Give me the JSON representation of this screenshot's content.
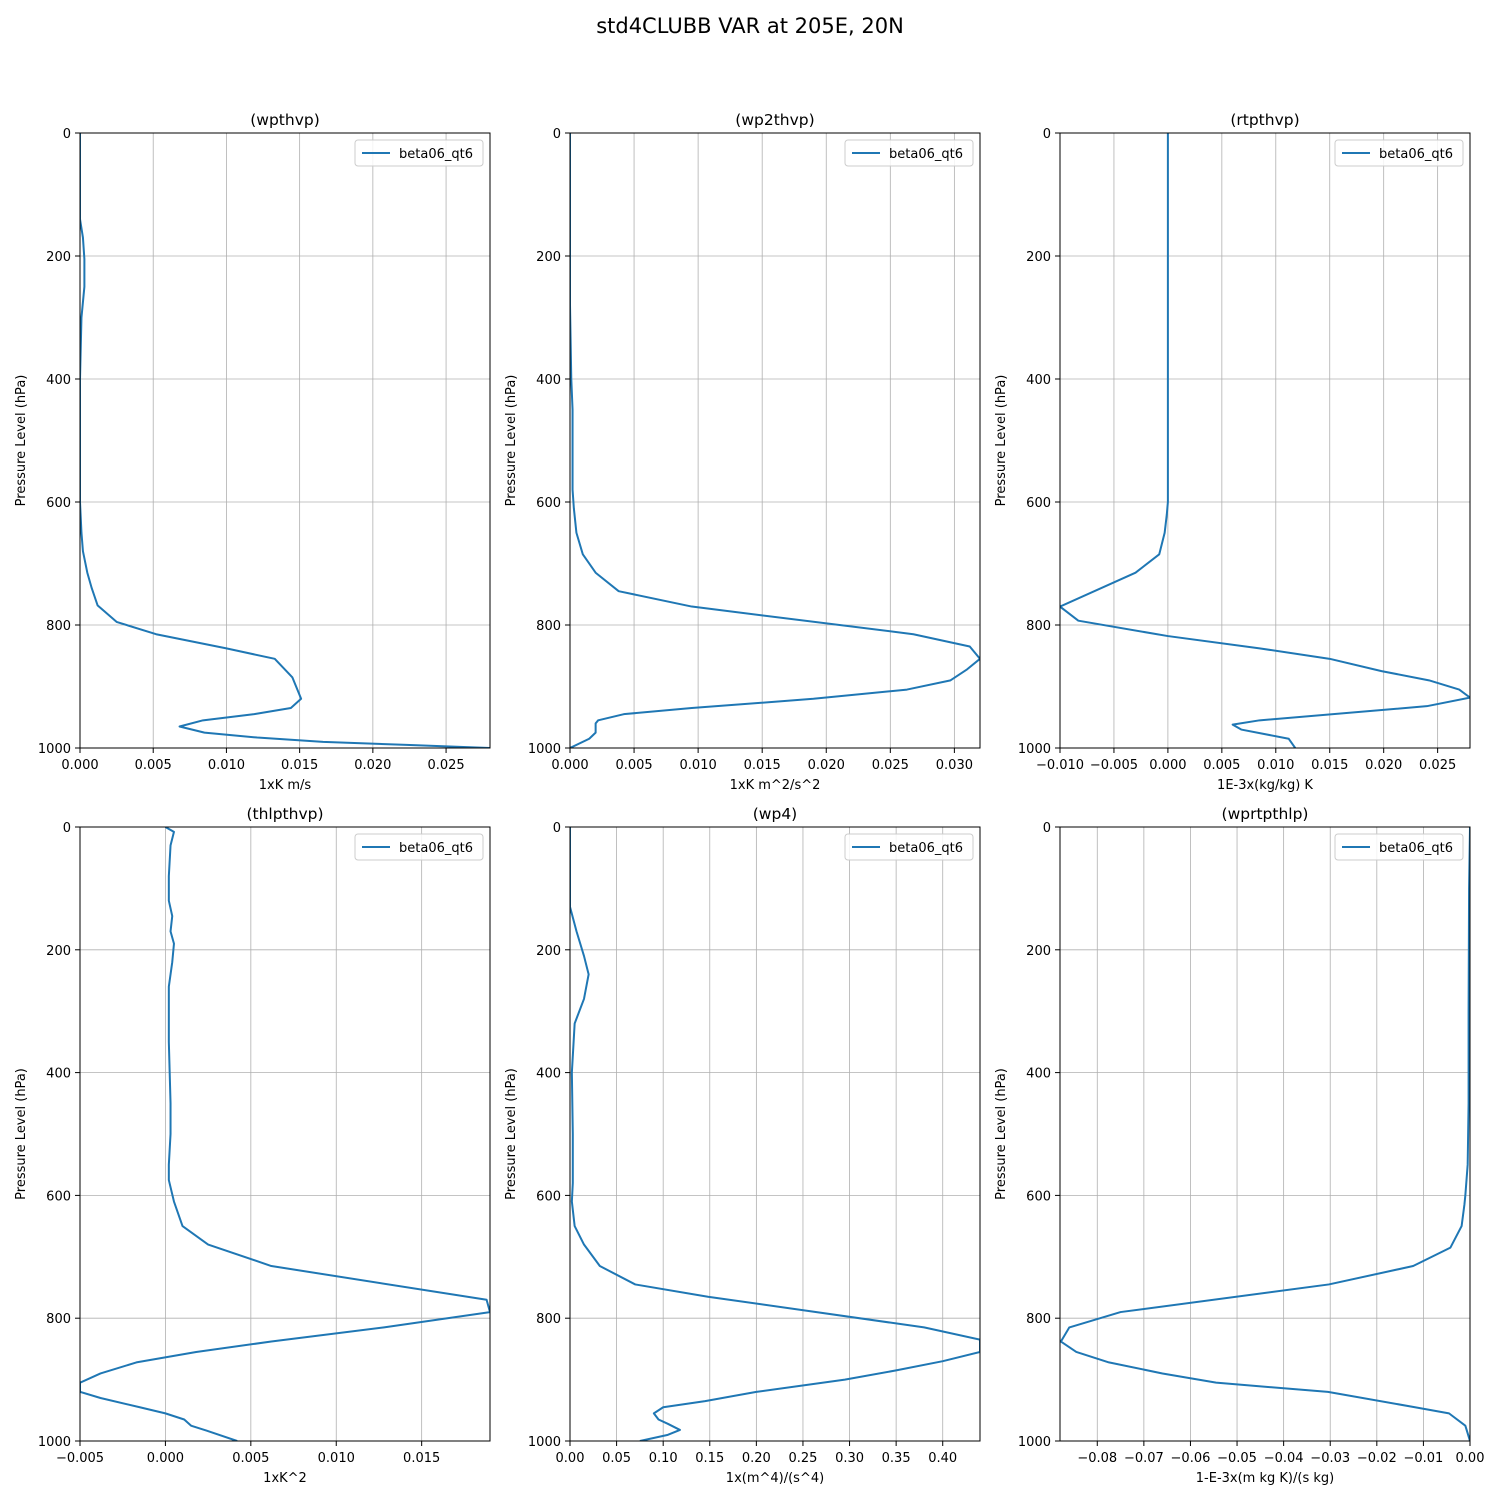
{
  "figure": {
    "suptitle": "std4CLUBB VAR at 205E, 20N"
  },
  "colors": {
    "line": "#1f77b4",
    "grid": "#b0b0b0",
    "legend_border": "#cccccc"
  },
  "chart_data": [
    {
      "type": "line",
      "title": "(wpthvp)",
      "xlabel": "1xK m/s",
      "ylabel": "Pressure Level (hPa)",
      "xlim": [
        0,
        0.028
      ],
      "ylim": [
        1000,
        0
      ],
      "xticks": [
        0,
        0.005,
        0.01,
        0.015,
        0.02,
        0.025
      ],
      "xtick_labels": [
        "0.000",
        "0.005",
        "0.010",
        "0.015",
        "0.020",
        "0.025"
      ],
      "yticks": [
        0,
        200,
        400,
        600,
        800,
        1000
      ],
      "ytick_labels": [
        "0",
        "200",
        "400",
        "600",
        "800",
        "1000"
      ],
      "grid": true,
      "legend": "upper right",
      "series": [
        {
          "name": "beta06_qt6",
          "x": [
            0,
            0,
            0,
            0.0002,
            0.0003,
            0.0003,
            0.0001,
            0,
            0,
            0,
            0.0001,
            0.0002,
            0.0005,
            0.0008,
            0.0012,
            0.0025,
            0.0052,
            0.01,
            0.0133,
            0.0145,
            0.0151,
            0.0144,
            0.0119,
            0.0084,
            0.0068,
            0.0085,
            0.0121,
            0.0166,
            0.0223,
            0.028
          ],
          "y": [
            0,
            60,
            140,
            170,
            205,
            250,
            300,
            400,
            500,
            600,
            650,
            680,
            715,
            740,
            768,
            795,
            815,
            838,
            855,
            885,
            920,
            935,
            945,
            955,
            965,
            975,
            983,
            990,
            995,
            1000
          ]
        }
      ]
    },
    {
      "type": "line",
      "title": "(wp2thvp)",
      "xlabel": "1xK m^2/s^2",
      "ylabel": "Pressure Level (hPa)",
      "xlim": [
        0,
        0.032
      ],
      "ylim": [
        1000,
        0
      ],
      "xticks": [
        0,
        0.005,
        0.01,
        0.015,
        0.02,
        0.025,
        0.03
      ],
      "xtick_labels": [
        "0.000",
        "0.005",
        "0.010",
        "0.015",
        "0.020",
        "0.025",
        "0.030"
      ],
      "yticks": [
        0,
        200,
        400,
        600,
        800,
        1000
      ],
      "ytick_labels": [
        "0",
        "200",
        "400",
        "600",
        "800",
        "1000"
      ],
      "grid": true,
      "legend": "upper right",
      "series": [
        {
          "name": "beta06_qt6",
          "x": [
            0,
            0,
            0.0001,
            0.0002,
            0.0002,
            0.0002,
            0.0003,
            0.0005,
            0.001,
            0.002,
            0.0038,
            0.0095,
            0.0268,
            0.0312,
            0.032,
            0.031,
            0.0297,
            0.0263,
            0.019,
            0.0095,
            0.0042,
            0.0022,
            0.002,
            0.002,
            0.0015,
            0
          ],
          "y": [
            0,
            280,
            400,
            450,
            500,
            580,
            610,
            650,
            685,
            715,
            745,
            770,
            815,
            835,
            855,
            872,
            890,
            905,
            920,
            935,
            945,
            955,
            960,
            975,
            985,
            1000
          ]
        }
      ]
    },
    {
      "type": "line",
      "title": "(rtpthvp)",
      "xlabel": "1E-3x(kg/kg) K",
      "ylabel": "Pressure Level (hPa)",
      "xlim": [
        -0.01,
        0.028
      ],
      "ylim": [
        1000,
        0
      ],
      "xticks": [
        -0.01,
        -0.005,
        0,
        0.005,
        0.01,
        0.015,
        0.02,
        0.025
      ],
      "xtick_labels": [
        "−0.010",
        "−0.005",
        "0.000",
        "0.005",
        "0.010",
        "0.015",
        "0.020",
        "0.025"
      ],
      "yticks": [
        0,
        200,
        400,
        600,
        800,
        1000
      ],
      "ytick_labels": [
        "0",
        "200",
        "400",
        "600",
        "800",
        "1000"
      ],
      "grid": true,
      "legend": "upper right",
      "series": [
        {
          "name": "beta06_qt6",
          "x": [
            0,
            0,
            0,
            0,
            0,
            -0.0001,
            -0.0003,
            -0.0008,
            -0.003,
            -0.01,
            -0.0083,
            0,
            0.0085,
            0.015,
            0.0198,
            0.0242,
            0.027,
            0.028,
            0.024,
            0.0085,
            0.006,
            0.0068,
            0.0112,
            0.0118
          ],
          "y": [
            0,
            200,
            400,
            500,
            600,
            620,
            650,
            685,
            715,
            770,
            793,
            818,
            838,
            855,
            875,
            890,
            905,
            918,
            932,
            955,
            962,
            970,
            985,
            1000
          ]
        }
      ]
    },
    {
      "type": "line",
      "title": "(thlpthvp)",
      "xlabel": "1xK^2",
      "ylabel": "Pressure Level (hPa)",
      "xlim": [
        -0.005,
        0.019
      ],
      "ylim": [
        1000,
        0
      ],
      "xticks": [
        -0.005,
        0,
        0.005,
        0.01,
        0.015
      ],
      "xtick_labels": [
        "−0.005",
        "0.000",
        "0.005",
        "0.010",
        "0.015"
      ],
      "yticks": [
        0,
        200,
        400,
        600,
        800,
        1000
      ],
      "ytick_labels": [
        "0",
        "200",
        "400",
        "600",
        "800",
        "1000"
      ],
      "grid": true,
      "legend": "upper right",
      "series": [
        {
          "name": "beta06_qt6",
          "x": [
            0,
            0.0005,
            0.0003,
            0.0002,
            0.0002,
            0.0004,
            0.0003,
            0.0005,
            0.0004,
            0.0002,
            0.0002,
            0.0003,
            0.0003,
            0.0002,
            0.0002,
            0.0005,
            0.001,
            0.0025,
            0.0062,
            0.0188,
            0.019,
            0.0128,
            0.0062,
            0.0018,
            -0.0017,
            -0.0038,
            -0.005,
            -0.005,
            -0.0038,
            -0.0015,
            0,
            0.0011,
            0.0015,
            0.0024,
            0.0042
          ],
          "y": [
            0,
            8,
            30,
            80,
            120,
            145,
            170,
            190,
            220,
            260,
            350,
            450,
            500,
            550,
            575,
            610,
            650,
            680,
            715,
            770,
            790,
            815,
            838,
            855,
            872,
            890,
            905,
            920,
            930,
            945,
            955,
            965,
            975,
            983,
            1000
          ]
        }
      ]
    },
    {
      "type": "line",
      "title": "(wp4)",
      "xlabel": "1x(m^4)/(s^4)",
      "ylabel": "Pressure Level (hPa)",
      "xlim": [
        0,
        0.44
      ],
      "ylim": [
        1000,
        0
      ],
      "xticks": [
        0,
        0.05,
        0.1,
        0.15,
        0.2,
        0.25,
        0.3,
        0.35,
        0.4
      ],
      "xtick_labels": [
        "0.00",
        "0.05",
        "0.10",
        "0.15",
        "0.20",
        "0.25",
        "0.30",
        "0.35",
        "0.40"
      ],
      "yticks": [
        0,
        200,
        400,
        600,
        800,
        1000
      ],
      "ytick_labels": [
        "0",
        "200",
        "400",
        "600",
        "800",
        "1000"
      ],
      "grid": true,
      "legend": "upper right",
      "series": [
        {
          "name": "beta06_qt6",
          "x": [
            0,
            0,
            0.007,
            0.015,
            0.02,
            0.015,
            0.005,
            0.002,
            0.003,
            0.003,
            0.003,
            0.002,
            0.005,
            0.015,
            0.032,
            0.07,
            0.148,
            0.38,
            0.44,
            0.44,
            0.4,
            0.35,
            0.295,
            0.2,
            0.145,
            0.1,
            0.09,
            0.095,
            0.105,
            0.118,
            0.105,
            0.075
          ],
          "y": [
            0,
            130,
            170,
            210,
            240,
            280,
            320,
            400,
            500,
            550,
            580,
            610,
            650,
            680,
            715,
            745,
            765,
            815,
            835,
            855,
            870,
            885,
            900,
            920,
            935,
            945,
            955,
            965,
            972,
            982,
            990,
            1000
          ]
        }
      ]
    },
    {
      "type": "line",
      "title": "(wprtpthlp)",
      "xlabel": "1-E-3x(m kg K)/(s kg)",
      "ylabel": "Pressure Level (hPa)",
      "xlim": [
        -0.088,
        0
      ],
      "ylim": [
        1000,
        0
      ],
      "xticks": [
        -0.08,
        -0.07,
        -0.06,
        -0.05,
        -0.04,
        -0.03,
        -0.02,
        -0.01,
        0
      ],
      "xtick_labels": [
        "−0.08",
        "−0.07",
        "−0.06",
        "−0.05",
        "−0.04",
        "−0.03",
        "−0.02",
        "−0.01",
        "0.00"
      ],
      "yticks": [
        0,
        200,
        400,
        600,
        800,
        1000
      ],
      "ytick_labels": [
        "0",
        "200",
        "400",
        "600",
        "800",
        "1000"
      ],
      "grid": true,
      "legend": "upper right",
      "series": [
        {
          "name": "beta06_qt6",
          "x": [
            0,
            -0.0002,
            -0.0003,
            -0.0003,
            -0.0005,
            -0.001,
            -0.0012,
            -0.0018,
            -0.0042,
            -0.0122,
            -0.0303,
            -0.075,
            -0.086,
            -0.0878,
            -0.0845,
            -0.0775,
            -0.066,
            -0.0545,
            -0.0305,
            -0.0118,
            -0.0045,
            -0.001,
            0
          ],
          "y": [
            0,
            100,
            300,
            450,
            550,
            600,
            615,
            650,
            685,
            715,
            745,
            790,
            815,
            838,
            855,
            872,
            890,
            905,
            920,
            945,
            955,
            975,
            1000
          ]
        }
      ]
    }
  ]
}
